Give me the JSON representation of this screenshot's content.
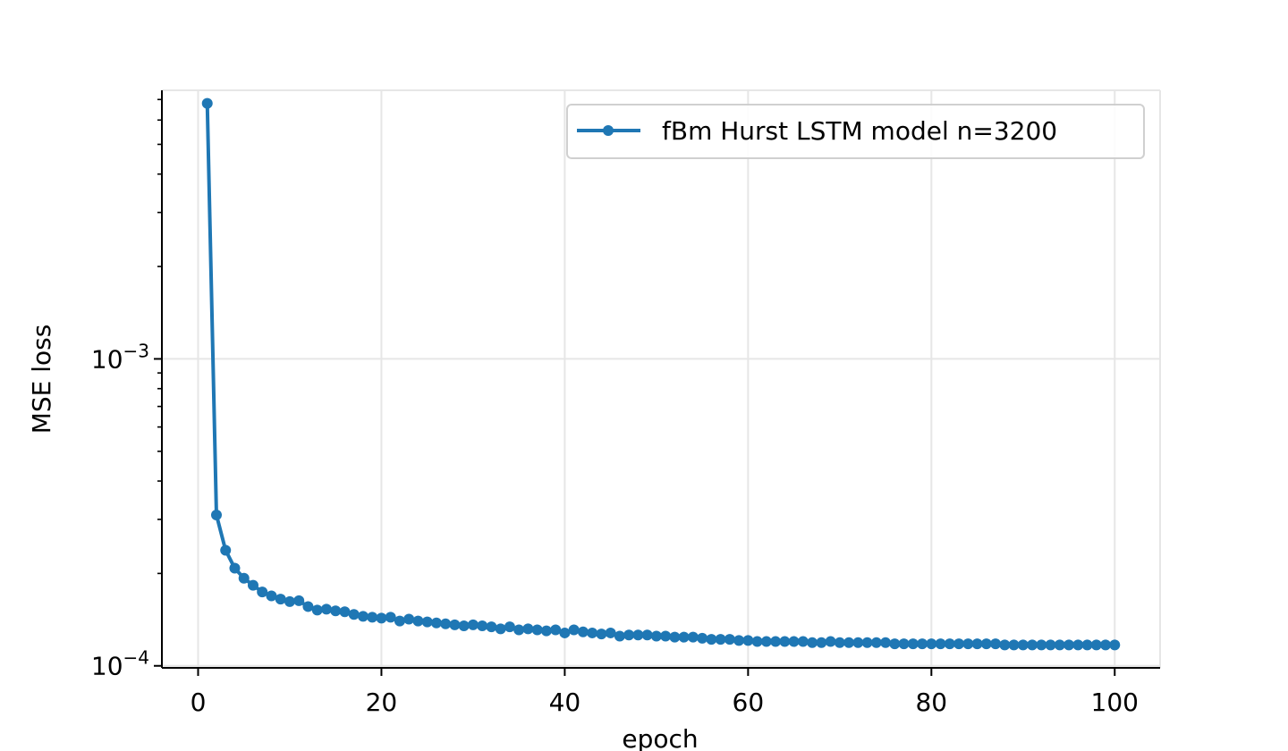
{
  "chart_data": {
    "type": "line",
    "title": "",
    "xlabel": "epoch",
    "ylabel": "MSE loss",
    "xlim": [
      -3.95,
      104.95
    ],
    "ylim": [
      9.85e-05,
      0.0075
    ],
    "yscale": "log",
    "grid": true,
    "legend_position": "top-right",
    "x_ticks": [
      0,
      20,
      40,
      60,
      80,
      100
    ],
    "y_ticks": [
      {
        "value": 0.001,
        "base": "10",
        "exp": "−3"
      },
      {
        "value": 0.0001,
        "base": "10",
        "exp": "−4"
      }
    ],
    "series": [
      {
        "name": "fBm Hurst LSTM model n=3200",
        "color": "#1f77b4",
        "marker": "circle",
        "x": [
          1,
          2,
          3,
          4,
          5,
          6,
          7,
          8,
          9,
          10,
          11,
          12,
          13,
          14,
          15,
          16,
          17,
          18,
          19,
          20,
          21,
          22,
          23,
          24,
          25,
          26,
          27,
          28,
          29,
          30,
          31,
          32,
          33,
          34,
          35,
          36,
          37,
          38,
          39,
          40,
          41,
          42,
          43,
          44,
          45,
          46,
          47,
          48,
          49,
          50,
          51,
          52,
          53,
          54,
          55,
          56,
          57,
          58,
          59,
          60,
          61,
          62,
          63,
          64,
          65,
          66,
          67,
          68,
          69,
          70,
          71,
          72,
          73,
          74,
          75,
          76,
          77,
          78,
          79,
          80,
          81,
          82,
          83,
          84,
          85,
          86,
          87,
          88,
          89,
          90,
          91,
          92,
          93,
          94,
          95,
          96,
          97,
          98,
          99,
          100
        ],
        "values": [
          0.0068,
          0.00031,
          0.000238,
          0.000208,
          0.000193,
          0.000183,
          0.000174,
          0.000169,
          0.000165,
          0.000162,
          0.000163,
          0.000156,
          0.000152,
          0.000153,
          0.000151,
          0.00015,
          0.000147,
          0.000145,
          0.000144,
          0.000143,
          0.000144,
          0.00014,
          0.000142,
          0.00014,
          0.000139,
          0.000138,
          0.000137,
          0.000136,
          0.000135,
          0.000136,
          0.000135,
          0.000134,
          0.000132,
          0.000134,
          0.000131,
          0.000132,
          0.000131,
          0.00013,
          0.000131,
          0.000128,
          0.000131,
          0.000129,
          0.000128,
          0.000127,
          0.000128,
          0.000125,
          0.000126,
          0.000126,
          0.000126,
          0.000125,
          0.000125,
          0.000124,
          0.000124,
          0.000124,
          0.000123,
          0.000122,
          0.000122,
          0.000122,
          0.000121,
          0.000121,
          0.00012,
          0.00012,
          0.00012,
          0.00012,
          0.00012,
          0.00012,
          0.000119,
          0.000119,
          0.00012,
          0.000119,
          0.000119,
          0.000119,
          0.000119,
          0.000119,
          0.000119,
          0.000118,
          0.000118,
          0.000118,
          0.000118,
          0.000118,
          0.000118,
          0.000118,
          0.000118,
          0.000118,
          0.000118,
          0.000118,
          0.000118,
          0.000117,
          0.000117,
          0.000117,
          0.000117,
          0.000117,
          0.000117,
          0.000117,
          0.000117,
          0.000117,
          0.000117,
          0.000117,
          0.000117,
          0.000117
        ]
      }
    ]
  }
}
